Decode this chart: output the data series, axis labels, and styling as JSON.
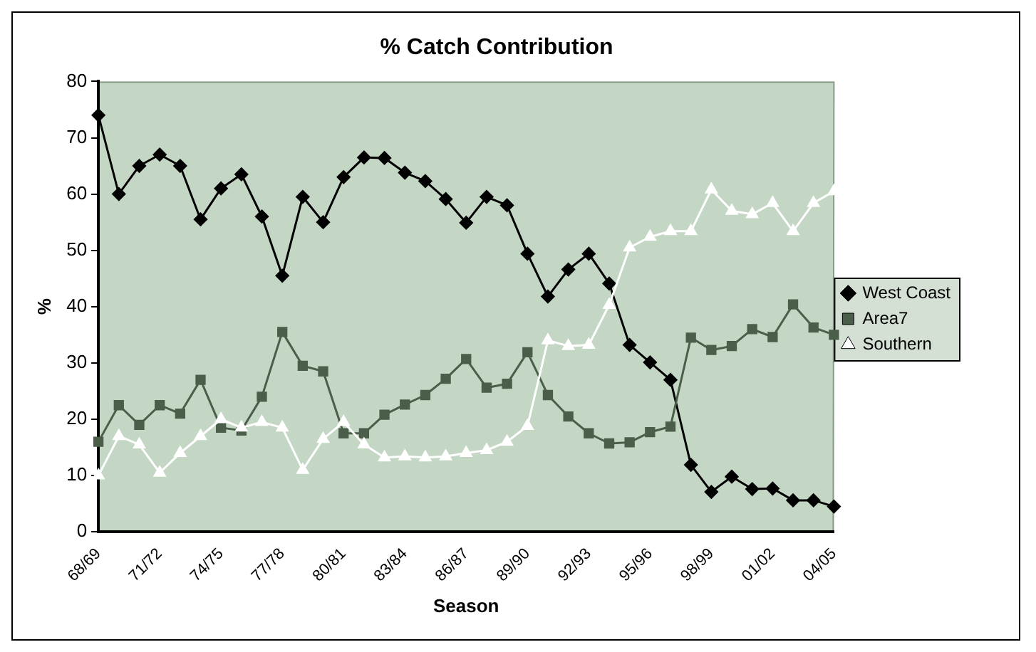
{
  "chart_data": {
    "type": "line",
    "title": "% Catch Contribution",
    "xlabel": "Season",
    "ylabel": "%",
    "categories": [
      "68/69",
      null,
      null,
      "71/72",
      null,
      null,
      "74/75",
      null,
      null,
      "77/78",
      null,
      null,
      "80/81",
      null,
      null,
      "83/84",
      null,
      null,
      "86/87",
      null,
      null,
      "89/90",
      null,
      null,
      "92/93",
      null,
      null,
      "95/96",
      null,
      null,
      "98/99",
      null,
      null,
      "01/02",
      null,
      null,
      "04/05"
    ],
    "series": [
      {
        "name": "West Coast",
        "color": "#000000",
        "marker": "diamond",
        "values": [
          74,
          60,
          65,
          67,
          65,
          55.5,
          61,
          63.5,
          56,
          45.5,
          59.5,
          55,
          63,
          66.5,
          66.4,
          63.8,
          62.3,
          59.1,
          54.9,
          59.5,
          58,
          49.4,
          41.8,
          46.6,
          49.4,
          44.1,
          33.2,
          30.1,
          27,
          11.9,
          7.1,
          9.8,
          7.6,
          7.7,
          5.6,
          5.6,
          4.5
        ]
      },
      {
        "name": "Area7",
        "color": "#4a5e4a",
        "marker": "square",
        "values": [
          16,
          22.5,
          19,
          22.5,
          21,
          27,
          18.5,
          18,
          24,
          35.5,
          29.5,
          28.5,
          17.5,
          17.5,
          20.8,
          22.6,
          24.3,
          27.2,
          30.7,
          25.6,
          26.3,
          31.9,
          24.3,
          20.5,
          17.5,
          15.7,
          15.9,
          17.7,
          18.7,
          34.5,
          32.3,
          33,
          36,
          34.6,
          40.4,
          36.3,
          35
        ]
      },
      {
        "name": "Southern",
        "color": "#ffffff",
        "marker": "triangle",
        "values": [
          10,
          17,
          15.5,
          10.5,
          14,
          17,
          20,
          18.5,
          19.5,
          18.5,
          11,
          16.5,
          19.5,
          15.5,
          13.2,
          13.4,
          13.2,
          13.4,
          14,
          14.5,
          16,
          18.8,
          34,
          33,
          33.2,
          40.3,
          50.5,
          52.4,
          53.4,
          53.4,
          60.8,
          57,
          56.4,
          58.4,
          53.4,
          58.4,
          60.5
        ]
      }
    ],
    "ylim": [
      0,
      80
    ],
    "yticks": [
      0,
      10,
      20,
      30,
      40,
      50,
      60,
      70,
      80
    ],
    "grid": false,
    "legend": "right"
  }
}
